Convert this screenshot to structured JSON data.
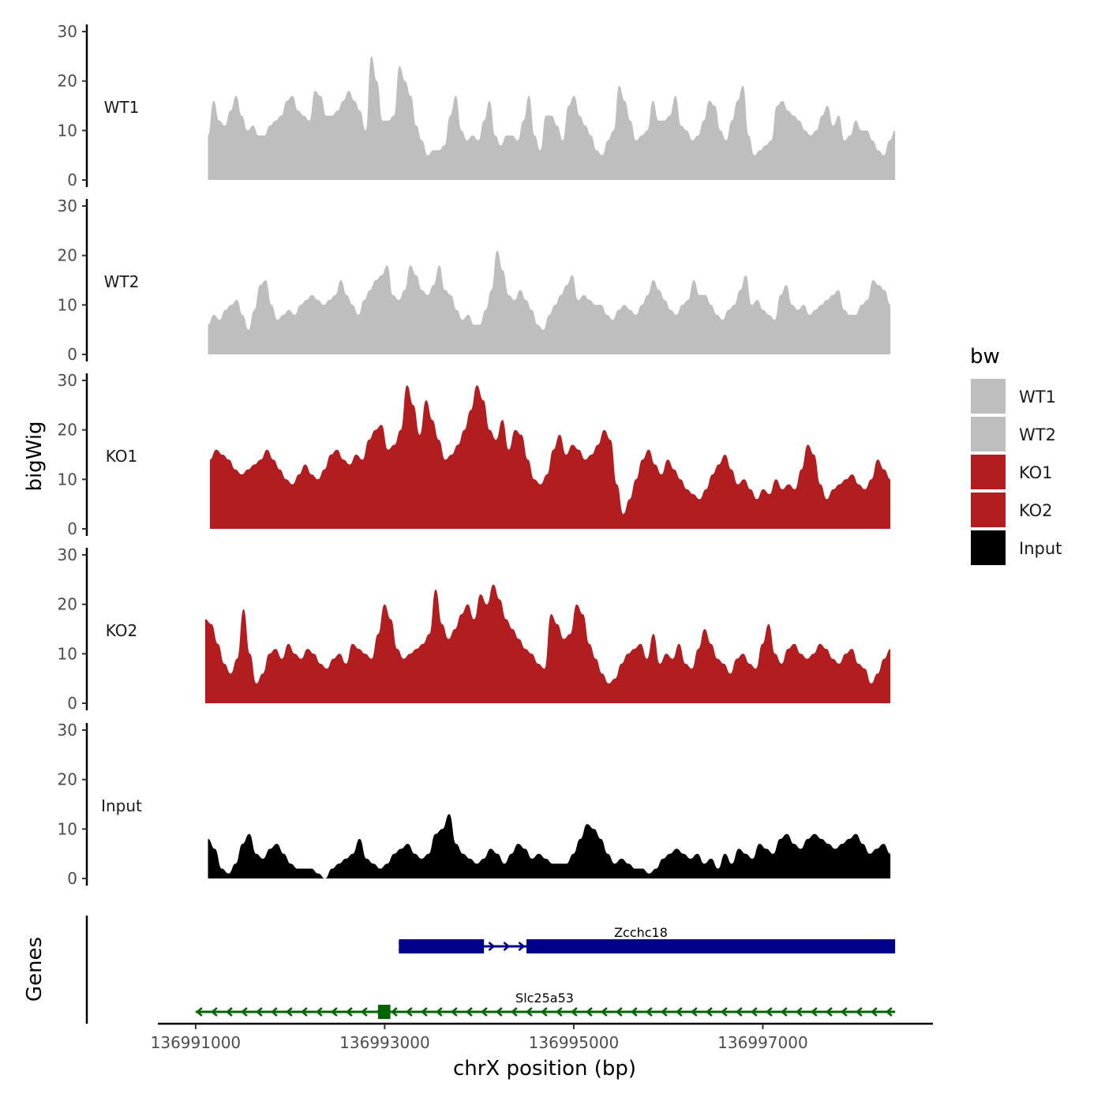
{
  "chart_data": {
    "type": "area",
    "title": "",
    "ylabel": "bigWig",
    "xlabel": "chrX position (bp)",
    "genes_label": "Genes",
    "ylim": [
      0,
      30
    ],
    "yticks": [
      "0",
      "10",
      "20",
      "30"
    ],
    "xlim": [
      136990600,
      136998800
    ],
    "xticks": [
      {
        "value": 136991000,
        "label": "136991000"
      },
      {
        "value": 136993000,
        "label": "136993000"
      },
      {
        "value": 136995000,
        "label": "136995000"
      },
      {
        "value": 136997000,
        "label": "136997000"
      }
    ],
    "legend": {
      "title": "bw",
      "entries": [
        {
          "label": "WT1",
          "color": "#bebebe"
        },
        {
          "label": "WT2",
          "color": "#bebebe"
        },
        {
          "label": "KO1",
          "color": "#b21d1f"
        },
        {
          "label": "KO2",
          "color": "#b21d1f"
        },
        {
          "label": "Input",
          "color": "#000000"
        }
      ]
    },
    "x_range": [
      136991130,
      136998400
    ],
    "series": [
      {
        "name": "WT1",
        "color": "#bebebe",
        "x_start": 136991130,
        "x_end": 136998400,
        "values": [
          9,
          16,
          12,
          11,
          14,
          17,
          13,
          10,
          11,
          9,
          9,
          11,
          12,
          13,
          16,
          17,
          14,
          13,
          12,
          18,
          17,
          13,
          13,
          14,
          16,
          18,
          16,
          14,
          10,
          25,
          20,
          12,
          12,
          13,
          23,
          20,
          17,
          11,
          8,
          5,
          6,
          6,
          7,
          13,
          17,
          10,
          8,
          9,
          8,
          12,
          16,
          9,
          7,
          9,
          9,
          8,
          12,
          17,
          9,
          6,
          13,
          13,
          11,
          8,
          15,
          17,
          13,
          11,
          9,
          6,
          5,
          8,
          10,
          19,
          16,
          12,
          8,
          9,
          10,
          16,
          12,
          12,
          13,
          17,
          11,
          10,
          8,
          9,
          12,
          16,
          15,
          10,
          8,
          12,
          16,
          19,
          9,
          5,
          6,
          7,
          8,
          15,
          16,
          14,
          13,
          12,
          10,
          9,
          10,
          13,
          15,
          11,
          13,
          8,
          9,
          12,
          10,
          10,
          8,
          6,
          5,
          8,
          10
        ]
      },
      {
        "name": "WT2",
        "color": "#bebebe",
        "x_start": 136991130,
        "x_end": 136998350,
        "values": [
          6,
          8,
          7,
          9,
          10,
          11,
          8,
          5,
          9,
          14,
          15,
          10,
          7,
          8,
          9,
          8,
          10,
          11,
          12,
          11,
          10,
          11,
          12,
          15,
          12,
          10,
          8,
          11,
          13,
          15,
          16,
          18,
          12,
          11,
          13,
          18,
          16,
          13,
          12,
          14,
          18,
          13,
          12,
          9,
          7,
          8,
          6,
          6,
          9,
          13,
          21,
          17,
          12,
          11,
          13,
          11,
          9,
          6,
          5,
          8,
          10,
          12,
          14,
          16,
          11,
          12,
          11,
          10,
          10,
          8,
          7,
          9,
          10,
          9,
          8,
          10,
          12,
          15,
          13,
          11,
          9,
          8,
          10,
          11,
          15,
          12,
          12,
          10,
          8,
          7,
          9,
          10,
          13,
          16,
          10,
          11,
          9,
          8,
          7,
          12,
          14,
          10,
          9,
          10,
          8,
          9,
          10,
          11,
          12,
          13,
          9,
          8,
          8,
          10,
          11,
          15,
          14,
          13,
          10
        ]
      },
      {
        "name": "KO1",
        "color": "#b21d1f",
        "x_start": 136991150,
        "x_end": 136998350,
        "values": [
          14,
          16,
          15,
          14,
          12,
          11,
          12,
          13,
          14,
          16,
          14,
          12,
          10,
          9,
          11,
          13,
          11,
          10,
          12,
          15,
          16,
          14,
          13,
          15,
          14,
          18,
          20,
          21,
          16,
          17,
          20,
          29,
          25,
          19,
          26,
          22,
          18,
          14,
          15,
          17,
          20,
          24,
          29,
          26,
          20,
          18,
          22,
          16,
          20,
          19,
          14,
          10,
          9,
          11,
          16,
          19,
          15,
          17,
          16,
          14,
          15,
          17,
          20,
          18,
          9,
          3,
          6,
          10,
          14,
          16,
          13,
          11,
          14,
          12,
          10,
          8,
          7,
          6,
          8,
          11,
          13,
          15,
          12,
          9,
          10,
          8,
          6,
          8,
          7,
          10,
          8,
          9,
          8,
          12,
          17,
          15,
          9,
          6,
          8,
          9,
          10,
          11,
          9,
          8,
          10,
          14,
          12,
          10
        ]
      },
      {
        "name": "KO2",
        "color": "#b21d1f",
        "x_start": 136991100,
        "x_end": 136998350,
        "values": [
          17,
          16,
          12,
          8,
          6,
          9,
          19,
          10,
          4,
          6,
          10,
          11,
          9,
          12,
          10,
          9,
          11,
          10,
          8,
          7,
          9,
          10,
          8,
          12,
          11,
          10,
          9,
          14,
          20,
          17,
          11,
          9,
          10,
          11,
          12,
          14,
          23,
          16,
          13,
          15,
          18,
          20,
          17,
          22,
          20,
          24,
          21,
          17,
          15,
          13,
          11,
          10,
          8,
          7,
          18,
          16,
          13,
          14,
          20,
          18,
          12,
          9,
          6,
          4,
          5,
          8,
          10,
          11,
          12,
          9,
          14,
          8,
          10,
          9,
          12,
          8,
          7,
          11,
          15,
          12,
          9,
          8,
          6,
          9,
          10,
          8,
          7,
          12,
          16,
          10,
          8,
          11,
          12,
          10,
          9,
          10,
          12,
          11,
          9,
          8,
          10,
          11,
          8,
          7,
          4,
          6,
          9,
          11
        ]
      },
      {
        "name": "Input",
        "color": "#000000",
        "x_start": 136991130,
        "x_end": 136998350,
        "values": [
          8,
          6,
          2,
          1,
          3,
          7,
          9,
          5,
          4,
          6,
          7,
          5,
          3,
          2,
          2,
          2,
          1,
          0,
          2,
          3,
          4,
          5,
          8,
          4,
          3,
          2,
          3,
          5,
          6,
          7,
          5,
          4,
          5,
          9,
          10,
          13,
          7,
          5,
          4,
          3,
          4,
          6,
          5,
          3,
          5,
          7,
          6,
          4,
          5,
          4,
          3,
          3,
          3,
          5,
          8,
          11,
          10,
          8,
          5,
          3,
          4,
          3,
          2,
          2,
          1,
          2,
          4,
          5,
          6,
          5,
          4,
          5,
          3,
          4,
          2,
          5,
          3,
          6,
          5,
          4,
          7,
          6,
          5,
          8,
          9,
          7,
          6,
          8,
          9,
          8,
          7,
          6,
          7,
          8,
          9,
          7,
          5,
          6,
          7,
          5
        ]
      }
    ],
    "genes": [
      {
        "name": "Zcchc18",
        "color": "#00008b",
        "strand": "+",
        "start": 136993150,
        "end": 136998400,
        "exons": [
          [
            136993150,
            136994050
          ],
          [
            136994500,
            136998400
          ]
        ],
        "row": 1
      },
      {
        "name": "Slc25a53",
        "color": "#006400",
        "strand": "-",
        "start": 136991000,
        "end": 136998400,
        "exons": [
          [
            136992930,
            136993060
          ]
        ],
        "row": 2
      }
    ]
  }
}
